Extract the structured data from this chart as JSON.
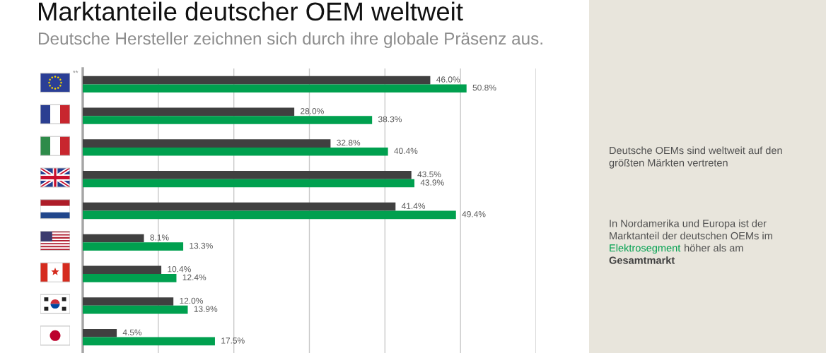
{
  "chart_data": {
    "type": "bar",
    "orientation": "horizontal",
    "title": "Marktanteile deutscher OEM weltweit",
    "subtitle": "Deutsche Hersteller zeichnen sich durch ihre globale Präsenz aus.",
    "categories": [
      null,
      null,
      null,
      null,
      null,
      null,
      null,
      null,
      null
    ],
    "series": [
      {
        "name": "Gesamtmarkt",
        "color": "#404040",
        "values": [
          46.0,
          28.0,
          32.8,
          43.5,
          41.4,
          8.1,
          10.4,
          12.0,
          4.5
        ],
        "value_labels": [
          "46.0%",
          "28.0%",
          "32.8%",
          "43.5%",
          "41.4%",
          "8.1%",
          "10.4%",
          "12.0%",
          "4.5%"
        ]
      },
      {
        "name": "Elektrosegment",
        "color": "#00a04f",
        "values": [
          50.8,
          38.3,
          40.4,
          43.9,
          49.4,
          13.3,
          12.4,
          13.9,
          17.5
        ],
        "value_labels": [
          "50.8%",
          "38.3%",
          "40.4%",
          "43.9%",
          "49.4%",
          "13.3%",
          "12.4%",
          "13.9%",
          "17.5%"
        ]
      }
    ],
    "xlim": [
      0,
      60
    ],
    "xticks": [
      {
        "value": 0,
        "label": null
      },
      {
        "value": 10,
        "label": null
      },
      {
        "value": 20,
        "label": null
      },
      {
        "value": 30,
        "label": null
      },
      {
        "value": 40,
        "label": null
      },
      {
        "value": 50,
        "label": null
      },
      {
        "value": 60,
        "label": null
      }
    ],
    "grid": "x",
    "annotations": [
      "**",
      "Deutsche OEMs sind weltweit auf den\ngrößten Märkten vertreten",
      "In Nordamerika und Europa ist der\nMarktanteil der deutschen OEMs im",
      "höher als am"
    ]
  }
}
